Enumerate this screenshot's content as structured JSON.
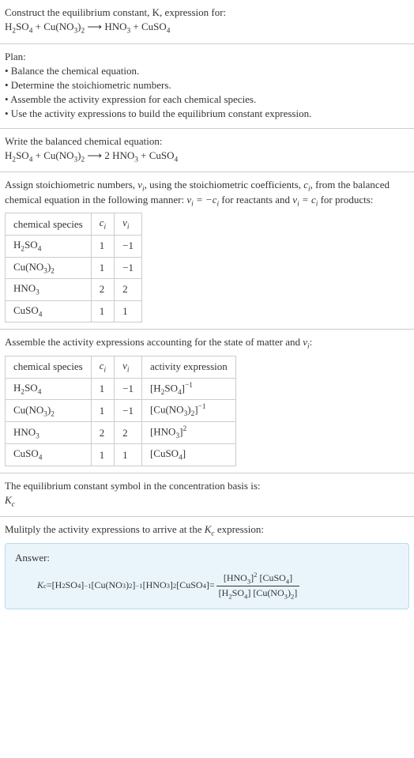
{
  "section1": {
    "line1": "Construct the equilibrium constant, K, expression for:",
    "eq_lhs1": "H",
    "eq_lhs1_sub": "2",
    "eq_lhs2": "SO",
    "eq_lhs2_sub": "4",
    "plus1": " + ",
    "eq_lhs3": "Cu(NO",
    "eq_lhs3_sub": "3",
    "eq_lhs4": ")",
    "eq_lhs4_sub": "2",
    "arrow": " ⟶ ",
    "eq_rhs1": "HNO",
    "eq_rhs1_sub": "3",
    "plus2": " + ",
    "eq_rhs2": "CuSO",
    "eq_rhs2_sub": "4"
  },
  "section2": {
    "plan": "Plan:",
    "b1": "• Balance the chemical equation.",
    "b2": "• Determine the stoichiometric numbers.",
    "b3": "• Assemble the activity expression for each chemical species.",
    "b4": "• Use the activity expressions to build the equilibrium constant expression."
  },
  "section3": {
    "line1": "Write the balanced chemical equation:",
    "lhs1": "H",
    "lhs1_sub": "2",
    "lhs2": "SO",
    "lhs2_sub": "4",
    "plus1": " + ",
    "lhs3": "Cu(NO",
    "lhs3_sub": "3",
    "lhs4": ")",
    "lhs4_sub": "2",
    "arrow": " ⟶ ",
    "coef": "2 ",
    "rhs1": "HNO",
    "rhs1_sub": "3",
    "plus2": " + ",
    "rhs2": "CuSO",
    "rhs2_sub": "4"
  },
  "section4": {
    "p1a": "Assign stoichiometric numbers, ",
    "nu": "ν",
    "nu_sub": "i",
    "p1b": ", using the stoichiometric coefficients, ",
    "c": "c",
    "c_sub": "i",
    "p1c": ", from the balanced chemical equation in the following manner: ",
    "expr1a": "ν",
    "expr1a_sub": "i",
    "expr1b": " = −c",
    "expr1b_sub": "i",
    "p1d": " for reactants and ",
    "expr2a": "ν",
    "expr2a_sub": "i",
    "expr2b": " = c",
    "expr2b_sub": "i",
    "p1e": " for products:",
    "h1": "chemical species",
    "h2": "c",
    "h2_sub": "i",
    "h3": "ν",
    "h3_sub": "i",
    "r1c1a": "H",
    "r1c1a_sub": "2",
    "r1c1b": "SO",
    "r1c1b_sub": "4",
    "r1c2": "1",
    "r1c3": "−1",
    "r2c1a": "Cu(NO",
    "r2c1a_sub": "3",
    "r2c1b": ")",
    "r2c1b_sub": "2",
    "r2c2": "1",
    "r2c3": "−1",
    "r3c1a": "HNO",
    "r3c1a_sub": "3",
    "r3c2": "2",
    "r3c3": "2",
    "r4c1a": "CuSO",
    "r4c1a_sub": "4",
    "r4c2": "1",
    "r4c3": "1"
  },
  "section5": {
    "p1a": "Assemble the activity expressions accounting for the state of matter and ",
    "nu": "ν",
    "nu_sub": "i",
    "p1b": ":",
    "h1": "chemical species",
    "h2": "c",
    "h2_sub": "i",
    "h3": "ν",
    "h3_sub": "i",
    "h4": "activity expression",
    "r1c1a": "H",
    "r1c1a_sub": "2",
    "r1c1b": "SO",
    "r1c1b_sub": "4",
    "r1c2": "1",
    "r1c3": "−1",
    "r1c4a": "[H",
    "r1c4a_sub": "2",
    "r1c4b": "SO",
    "r1c4b_sub": "4",
    "r1c4c": "]",
    "r1c4_sup": "−1",
    "r2c1a": "Cu(NO",
    "r2c1a_sub": "3",
    "r2c1b": ")",
    "r2c1b_sub": "2",
    "r2c2": "1",
    "r2c3": "−1",
    "r2c4a": "[Cu(NO",
    "r2c4a_sub": "3",
    "r2c4b": ")",
    "r2c4b_sub": "2",
    "r2c4c": "]",
    "r2c4_sup": "−1",
    "r3c1a": "HNO",
    "r3c1a_sub": "3",
    "r3c2": "2",
    "r3c3": "2",
    "r3c4a": "[HNO",
    "r3c4a_sub": "3",
    "r3c4b": "]",
    "r3c4_sup": "2",
    "r4c1a": "CuSO",
    "r4c1a_sub": "4",
    "r4c2": "1",
    "r4c3": "1",
    "r4c4a": "[CuSO",
    "r4c4a_sub": "4",
    "r4c4b": "]"
  },
  "section6": {
    "line1": "The equilibrium constant symbol in the concentration basis is:",
    "k": "K",
    "k_sub": "c"
  },
  "section7": {
    "p1a": "Mulitply the activity expressions to arrive at the ",
    "k": "K",
    "k_sub": "c",
    "p1b": " expression:"
  },
  "answer": {
    "label": "Answer:",
    "k": "K",
    "k_sub": "c",
    "eq": " = ",
    "t1a": "[H",
    "t1a_sub": "2",
    "t1b": "SO",
    "t1b_sub": "4",
    "t1c": "]",
    "t1_sup": "−1",
    "t2a": " [Cu(NO",
    "t2a_sub": "3",
    "t2b": ")",
    "t2b_sub": "2",
    "t2c": "]",
    "t2_sup": "−1",
    "t3a": " [HNO",
    "t3a_sub": "3",
    "t3b": "]",
    "t3_sup": "2",
    "t4a": " [CuSO",
    "t4a_sub": "4",
    "t4b": "]",
    "eq2": " = ",
    "num1a": "[HNO",
    "num1a_sub": "3",
    "num1b": "]",
    "num1_sup": "2",
    "num2a": " [CuSO",
    "num2a_sub": "4",
    "num2b": "]",
    "den1a": "[H",
    "den1a_sub": "2",
    "den1b": "SO",
    "den1b_sub": "4",
    "den1c": "]",
    "den2a": " [Cu(NO",
    "den2a_sub": "3",
    "den2b": ")",
    "den2b_sub": "2",
    "den2c": "]"
  }
}
